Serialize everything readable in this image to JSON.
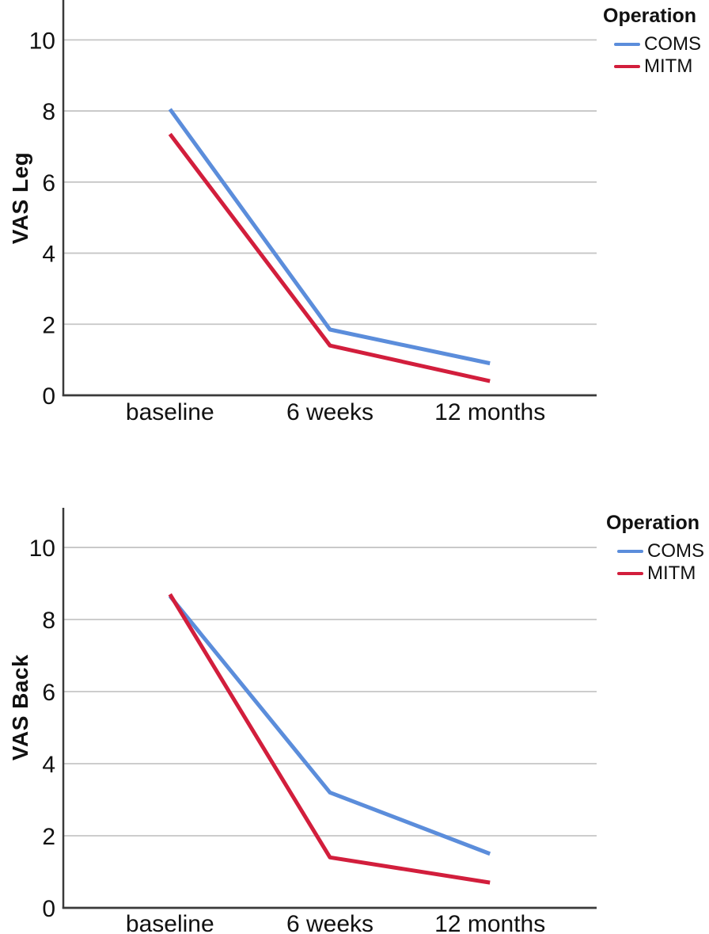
{
  "style": {
    "grid_color": "#C6C6C6",
    "axis_color": "#3A3A3A",
    "text_color": "#111111",
    "coms_color": "#5B8DDB",
    "mitm_color": "#D21E3C"
  },
  "chart_data": [
    {
      "type": "line",
      "title": "",
      "xlabel": "",
      "ylabel": "VAS Leg",
      "categories": [
        "baseline",
        "6 weeks",
        "12 months"
      ],
      "series": [
        {
          "name": "COMS",
          "color": "#5B8DDB",
          "values": [
            8.05,
            1.85,
            0.9
          ]
        },
        {
          "name": "MITM",
          "color": "#D21E3C",
          "values": [
            7.35,
            1.4,
            0.4
          ]
        }
      ],
      "yticks": [
        0,
        2,
        4,
        6,
        8,
        10
      ],
      "ylim": [
        0,
        11.1
      ],
      "grid": true,
      "legend": {
        "title": "Operation",
        "position": "top-right"
      }
    },
    {
      "type": "line",
      "title": "",
      "xlabel": "",
      "ylabel": "VAS Back",
      "categories": [
        "baseline",
        "6 weeks",
        "12 months"
      ],
      "series": [
        {
          "name": "COMS",
          "color": "#5B8DDB",
          "values": [
            8.65,
            3.2,
            1.5
          ]
        },
        {
          "name": "MITM",
          "color": "#D21E3C",
          "values": [
            8.7,
            1.4,
            0.7
          ]
        }
      ],
      "yticks": [
        0,
        2,
        4,
        6,
        8,
        10
      ],
      "ylim": [
        0,
        11.1
      ],
      "grid": true,
      "legend": {
        "title": "Operation",
        "position": "top-right"
      }
    }
  ]
}
